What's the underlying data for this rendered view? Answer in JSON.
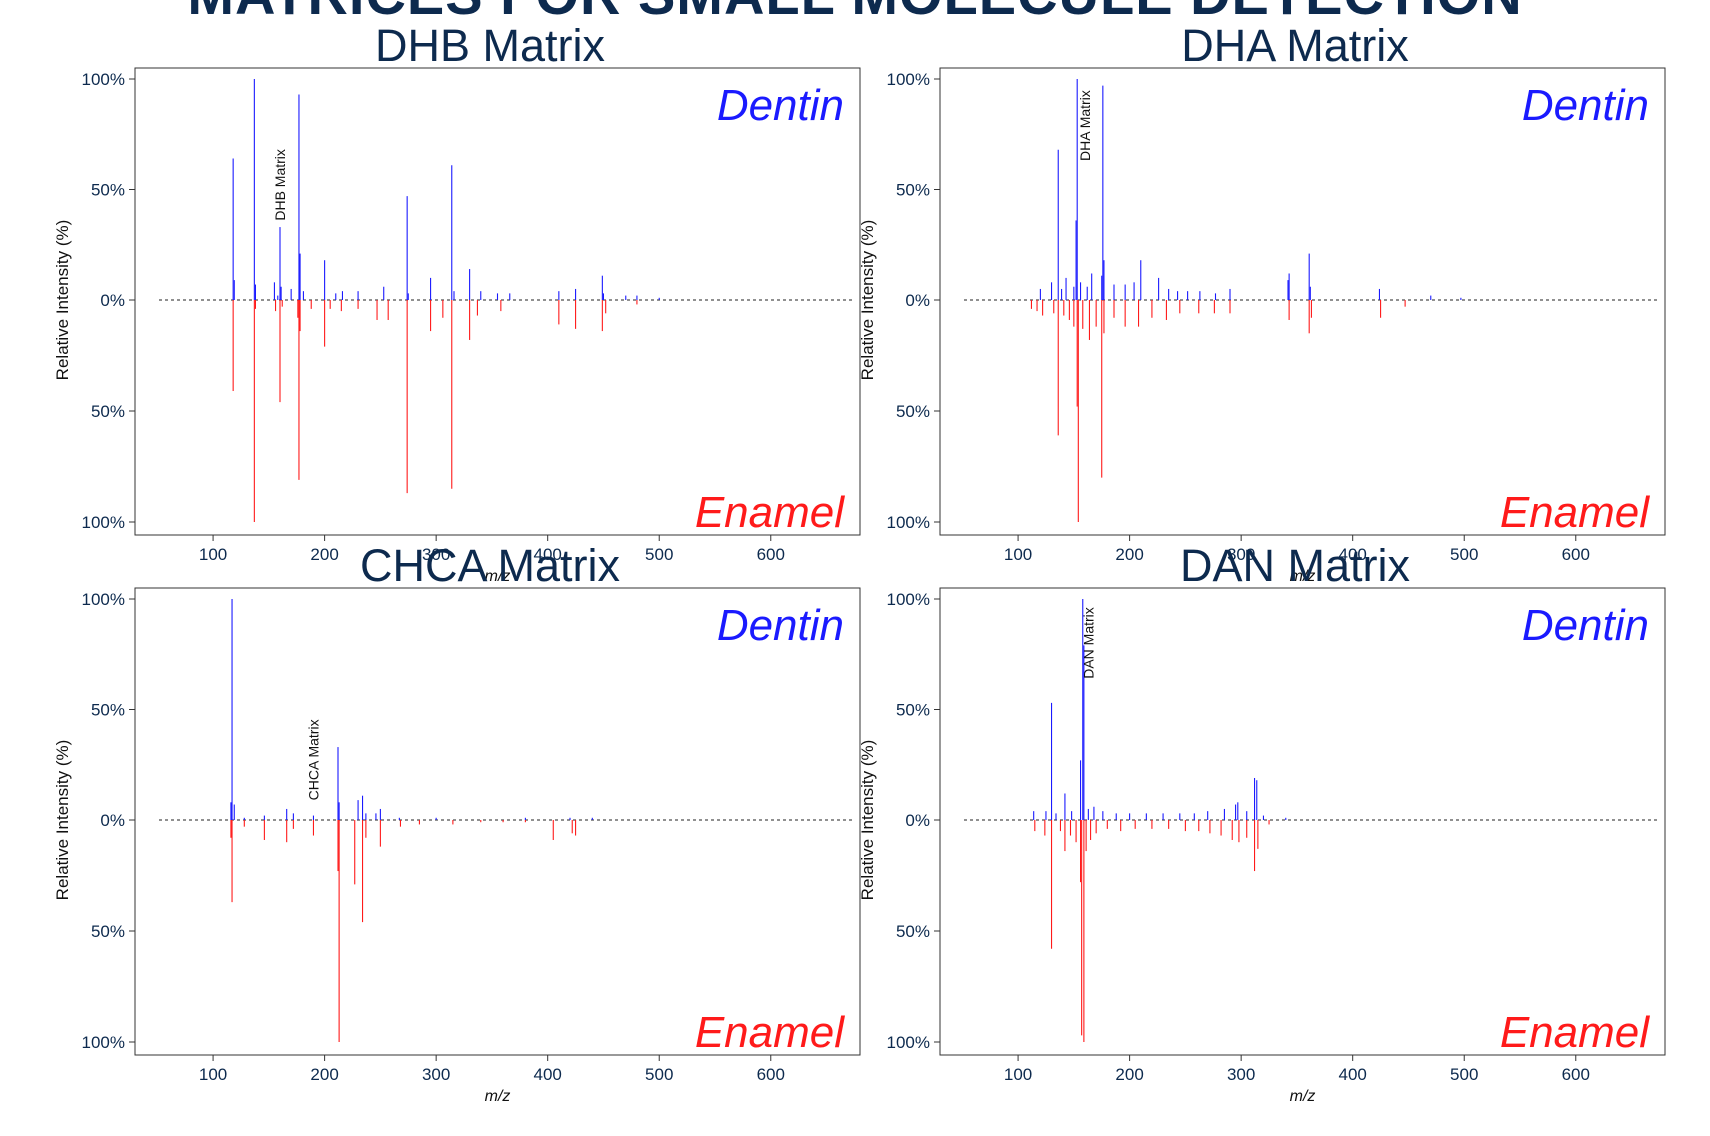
{
  "page": {
    "banner": "MATRICES FOR SMALL MOLECULE DETECTION"
  },
  "legend_labels": {
    "top": "Dentin",
    "bottom": "Enamel"
  },
  "colors": {
    "top_series": "#1a1aff",
    "bottom_series": "#ff1a1a",
    "text": "#0d2a4e",
    "axis": "#333333"
  },
  "chart_data": [
    {
      "type": "bar",
      "title": "DHB Matrix",
      "xlabel": "m/z",
      "ylabel": "Relative Intensity (%)",
      "xlim": [
        30,
        680
      ],
      "xticks": [
        100,
        200,
        300,
        400,
        500,
        600
      ],
      "ytick_labels": [
        "100%",
        "50%",
        "0%",
        "50%",
        "100%"
      ],
      "annotation": {
        "text": "DHB Matrix",
        "x": 160,
        "y": 35
      },
      "series": [
        {
          "name": "Dentin",
          "direction": "up",
          "points": [
            [
              118,
              64
            ],
            [
              119,
              9
            ],
            [
              137,
              100
            ],
            [
              138,
              7
            ],
            [
              155,
              8
            ],
            [
              158,
              2
            ],
            [
              160,
              33
            ],
            [
              161,
              6
            ],
            [
              170,
              5
            ],
            [
              177,
              93
            ],
            [
              178,
              21
            ],
            [
              181,
              4
            ],
            [
              200,
              18
            ],
            [
              210,
              3
            ],
            [
              216,
              4
            ],
            [
              230,
              4
            ],
            [
              253,
              6
            ],
            [
              274,
              47
            ],
            [
              275,
              3
            ],
            [
              295,
              10
            ],
            [
              314,
              61
            ],
            [
              316,
              4
            ],
            [
              330,
              14
            ],
            [
              340,
              4
            ],
            [
              355,
              3
            ],
            [
              366,
              3
            ],
            [
              410,
              4
            ],
            [
              425,
              5
            ],
            [
              449,
              11
            ],
            [
              450,
              3
            ],
            [
              470,
              2
            ],
            [
              480,
              2
            ],
            [
              500,
              1
            ]
          ]
        },
        {
          "name": "Enamel",
          "direction": "down",
          "points": [
            [
              118,
              41
            ],
            [
              137,
              100
            ],
            [
              138,
              4
            ],
            [
              156,
              5
            ],
            [
              160,
              46
            ],
            [
              162,
              3
            ],
            [
              176,
              8
            ],
            [
              177,
              81
            ],
            [
              178,
              14
            ],
            [
              188,
              4
            ],
            [
              200,
              21
            ],
            [
              205,
              4
            ],
            [
              215,
              5
            ],
            [
              230,
              4
            ],
            [
              247,
              9
            ],
            [
              257,
              9
            ],
            [
              274,
              87
            ],
            [
              295,
              14
            ],
            [
              306,
              8
            ],
            [
              314,
              85
            ],
            [
              330,
              18
            ],
            [
              337,
              7
            ],
            [
              358,
              5
            ],
            [
              410,
              11
            ],
            [
              425,
              13
            ],
            [
              449,
              14
            ],
            [
              452,
              6
            ],
            [
              480,
              2
            ]
          ]
        }
      ]
    },
    {
      "type": "bar",
      "title": "DHA Matrix",
      "xlabel": "m/z",
      "ylabel": "Relative Intensity (%)",
      "xlim": [
        30,
        680
      ],
      "xticks": [
        100,
        200,
        300,
        400,
        500,
        600
      ],
      "ytick_labels": [
        "100%",
        "50%",
        "0%",
        "50%",
        "100%"
      ],
      "annotation": {
        "text": "DHA Matrix",
        "x": 160,
        "y": 62
      },
      "series": [
        {
          "name": "Dentin",
          "direction": "up",
          "points": [
            [
              120,
              5
            ],
            [
              130,
              8
            ],
            [
              136,
              68
            ],
            [
              139,
              5
            ],
            [
              143,
              10
            ],
            [
              150,
              6
            ],
            [
              152,
              36
            ],
            [
              153,
              100
            ],
            [
              156,
              8
            ],
            [
              162,
              6
            ],
            [
              166,
              12
            ],
            [
              175,
              11
            ],
            [
              176,
              97
            ],
            [
              177,
              18
            ],
            [
              186,
              7
            ],
            [
              196,
              7
            ],
            [
              204,
              8
            ],
            [
              210,
              18
            ],
            [
              226,
              10
            ],
            [
              235,
              5
            ],
            [
              243,
              4
            ],
            [
              252,
              4
            ],
            [
              263,
              4
            ],
            [
              277,
              3
            ],
            [
              290,
              5
            ],
            [
              342,
              9
            ],
            [
              343,
              12
            ],
            [
              361,
              21
            ],
            [
              362,
              6
            ],
            [
              424,
              5
            ],
            [
              470,
              2
            ],
            [
              497,
              1
            ]
          ]
        },
        {
          "name": "Enamel",
          "direction": "down",
          "points": [
            [
              112,
              4
            ],
            [
              117,
              5
            ],
            [
              122,
              7
            ],
            [
              132,
              6
            ],
            [
              136,
              61
            ],
            [
              141,
              7
            ],
            [
              146,
              9
            ],
            [
              150,
              12
            ],
            [
              153,
              48
            ],
            [
              154,
              100
            ],
            [
              158,
              13
            ],
            [
              164,
              18
            ],
            [
              170,
              12
            ],
            [
              175,
              80
            ],
            [
              177,
              15
            ],
            [
              186,
              8
            ],
            [
              196,
              12
            ],
            [
              208,
              12
            ],
            [
              220,
              8
            ],
            [
              233,
              9
            ],
            [
              245,
              6
            ],
            [
              262,
              6
            ],
            [
              276,
              6
            ],
            [
              290,
              6
            ],
            [
              343,
              9
            ],
            [
              361,
              15
            ],
            [
              363,
              8
            ],
            [
              425,
              8
            ],
            [
              447,
              3
            ]
          ]
        }
      ]
    },
    {
      "type": "bar",
      "title": "CHCA Matrix",
      "xlabel": "m/z",
      "ylabel": "Relative Intensity (%)",
      "xlim": [
        30,
        680
      ],
      "xticks": [
        100,
        200,
        300,
        400,
        500,
        600
      ],
      "ytick_labels": [
        "100%",
        "50%",
        "0%",
        "50%",
        "100%"
      ],
      "annotation": {
        "text": "CHCA Matrix",
        "x": 190,
        "y": 8
      },
      "series": [
        {
          "name": "Dentin",
          "direction": "up",
          "points": [
            [
              116,
              8
            ],
            [
              117,
              100
            ],
            [
              119,
              7
            ],
            [
              128,
              1
            ],
            [
              146,
              2
            ],
            [
              166,
              5
            ],
            [
              172,
              3
            ],
            [
              190,
              2
            ],
            [
              212,
              33
            ],
            [
              213,
              8
            ],
            [
              230,
              9
            ],
            [
              234,
              11
            ],
            [
              237,
              3
            ],
            [
              246,
              3
            ],
            [
              250,
              5
            ],
            [
              267,
              1
            ],
            [
              300,
              1
            ],
            [
              380,
              1
            ],
            [
              420,
              1
            ],
            [
              440,
              1
            ]
          ]
        },
        {
          "name": "Enamel",
          "direction": "down",
          "points": [
            [
              116,
              8
            ],
            [
              117,
              37
            ],
            [
              128,
              3
            ],
            [
              146,
              9
            ],
            [
              166,
              10
            ],
            [
              172,
              4
            ],
            [
              190,
              7
            ],
            [
              212,
              23
            ],
            [
              213,
              100
            ],
            [
              227,
              29
            ],
            [
              234,
              46
            ],
            [
              237,
              8
            ],
            [
              250,
              12
            ],
            [
              268,
              3
            ],
            [
              285,
              2
            ],
            [
              315,
              2
            ],
            [
              340,
              1
            ],
            [
              360,
              1
            ],
            [
              380,
              1
            ],
            [
              405,
              9
            ],
            [
              422,
              6
            ],
            [
              425,
              7
            ]
          ]
        }
      ]
    },
    {
      "type": "bar",
      "title": "DAN Matrix",
      "xlabel": "m/z",
      "ylabel": "Relative Intensity (%)",
      "xlim": [
        30,
        680
      ],
      "xticks": [
        100,
        200,
        300,
        400,
        500,
        600
      ],
      "ytick_labels": [
        "100%",
        "50%",
        "0%",
        "50%",
        "100%"
      ],
      "annotation": {
        "text": "DAN Matrix",
        "x": 163,
        "y": 63
      },
      "series": [
        {
          "name": "Dentin",
          "direction": "up",
          "points": [
            [
              114,
              4
            ],
            [
              125,
              4
            ],
            [
              130,
              53
            ],
            [
              134,
              3
            ],
            [
              142,
              12
            ],
            [
              148,
              4
            ],
            [
              156,
              27
            ],
            [
              158,
              100
            ],
            [
              159,
              79
            ],
            [
              163,
              5
            ],
            [
              168,
              6
            ],
            [
              176,
              4
            ],
            [
              188,
              3
            ],
            [
              200,
              3
            ],
            [
              215,
              3
            ],
            [
              230,
              3
            ],
            [
              245,
              3
            ],
            [
              258,
              3
            ],
            [
              270,
              4
            ],
            [
              285,
              5
            ],
            [
              295,
              7
            ],
            [
              297,
              8
            ],
            [
              305,
              4
            ],
            [
              312,
              19
            ],
            [
              314,
              18
            ],
            [
              320,
              2
            ],
            [
              340,
              1
            ]
          ]
        },
        {
          "name": "Enamel",
          "direction": "down",
          "points": [
            [
              115,
              5
            ],
            [
              124,
              7
            ],
            [
              130,
              58
            ],
            [
              138,
              5
            ],
            [
              142,
              14
            ],
            [
              147,
              7
            ],
            [
              152,
              10
            ],
            [
              156,
              28
            ],
            [
              157,
              97
            ],
            [
              159,
              100
            ],
            [
              161,
              14
            ],
            [
              165,
              9
            ],
            [
              170,
              6
            ],
            [
              180,
              4
            ],
            [
              192,
              5
            ],
            [
              205,
              4
            ],
            [
              220,
              4
            ],
            [
              235,
              4
            ],
            [
              250,
              5
            ],
            [
              262,
              5
            ],
            [
              272,
              6
            ],
            [
              282,
              7
            ],
            [
              292,
              9
            ],
            [
              298,
              10
            ],
            [
              305,
              8
            ],
            [
              312,
              23
            ],
            [
              315,
              13
            ],
            [
              325,
              2
            ]
          ]
        }
      ]
    }
  ]
}
